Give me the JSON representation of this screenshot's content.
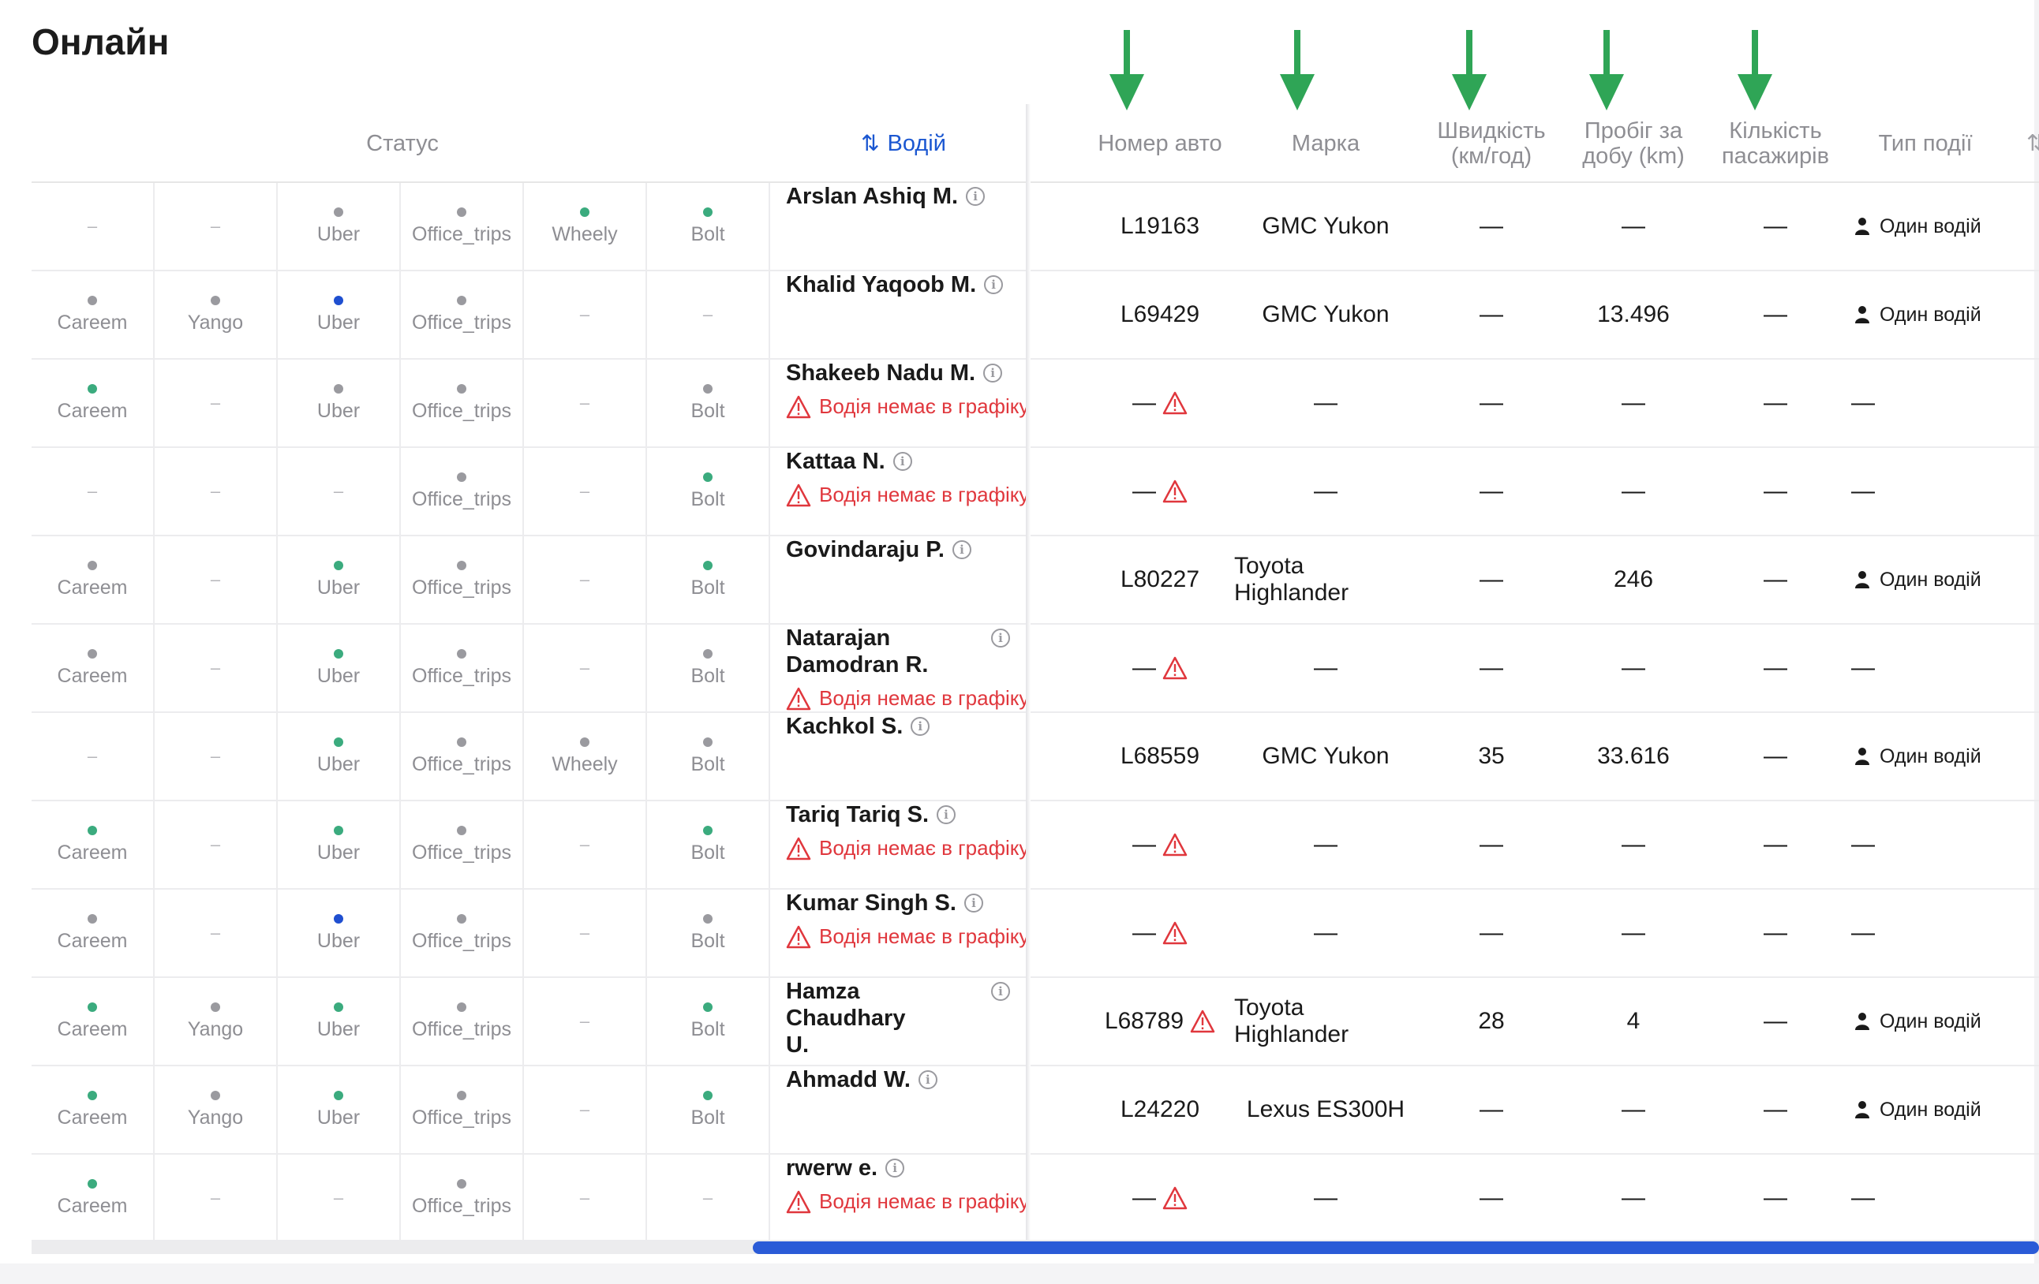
{
  "page": {
    "title": "Онлайн"
  },
  "header": {
    "status": "Статус",
    "driver": "Водій",
    "sort_icon": "⇅",
    "plate": "Номер авто",
    "brand": "Марка",
    "speed_1": "Швидкість",
    "speed_2": "(км/год)",
    "mileage_1": "Пробіг за",
    "mileage_2": "добу (km)",
    "passengers_1": "Кількість",
    "passengers_2": "пасажирів",
    "event": "Тип події",
    "cutoff": "⇅"
  },
  "colors": {
    "green": "#3bab7e",
    "gray": "#9a9a9f",
    "blue": "#1f4fd0",
    "warn": "#e0373d",
    "arrow": "#2fa556",
    "scroll": "#2a5bd7"
  },
  "rows": [
    {
      "services": [
        {
          "label": null
        },
        {
          "label": null
        },
        {
          "label": "Uber",
          "dot": "gray"
        },
        {
          "label": "Office_trips",
          "dot": "gray"
        },
        {
          "label": "Wheely",
          "dot": "green"
        },
        {
          "label": "Bolt",
          "dot": "green"
        }
      ],
      "driver": "Arslan Ashiq M.",
      "warning": null,
      "plate": "L19163",
      "plate_warn": false,
      "brand": "GMC Yukon",
      "speed": "—",
      "mileage": "—",
      "passengers": "—",
      "event": "Один водій"
    },
    {
      "services": [
        {
          "label": "Careem",
          "dot": "gray"
        },
        {
          "label": "Yango",
          "dot": "gray"
        },
        {
          "label": "Uber",
          "dot": "blue"
        },
        {
          "label": "Office_trips",
          "dot": "gray"
        },
        {
          "label": null
        },
        {
          "label": null
        }
      ],
      "driver": "Khalid Yaqoob M.",
      "warning": null,
      "plate": "L69429",
      "plate_warn": false,
      "brand": "GMC Yukon",
      "speed": "—",
      "mileage": "13.496",
      "passengers": "—",
      "event": "Один водій"
    },
    {
      "services": [
        {
          "label": "Careem",
          "dot": "green"
        },
        {
          "label": null
        },
        {
          "label": "Uber",
          "dot": "gray"
        },
        {
          "label": "Office_trips",
          "dot": "gray"
        },
        {
          "label": null
        },
        {
          "label": "Bolt",
          "dot": "gray"
        }
      ],
      "driver": "Shakeeb Nadu M.",
      "warning": "Водія немає в графіку",
      "plate": "—",
      "plate_warn": true,
      "brand": "—",
      "speed": "—",
      "mileage": "—",
      "passengers": "—",
      "event": "—"
    },
    {
      "services": [
        {
          "label": null
        },
        {
          "label": null
        },
        {
          "label": null
        },
        {
          "label": "Office_trips",
          "dot": "gray"
        },
        {
          "label": null
        },
        {
          "label": "Bolt",
          "dot": "green"
        }
      ],
      "driver": "Kattaa N.",
      "warning": "Водія немає в графіку",
      "plate": "—",
      "plate_warn": true,
      "brand": "—",
      "speed": "—",
      "mileage": "—",
      "passengers": "—",
      "event": "—"
    },
    {
      "services": [
        {
          "label": "Careem",
          "dot": "gray"
        },
        {
          "label": null
        },
        {
          "label": "Uber",
          "dot": "green"
        },
        {
          "label": "Office_trips",
          "dot": "gray"
        },
        {
          "label": null
        },
        {
          "label": "Bolt",
          "dot": "green"
        }
      ],
      "driver": "Govindaraju P.",
      "warning": null,
      "plate": "L80227",
      "plate_warn": false,
      "brand_1": "Toyota",
      "brand_2": "Highlander",
      "speed": "—",
      "mileage": "246",
      "passengers": "—",
      "event": "Один водій"
    },
    {
      "services": [
        {
          "label": "Careem",
          "dot": "gray"
        },
        {
          "label": null
        },
        {
          "label": "Uber",
          "dot": "green"
        },
        {
          "label": "Office_trips",
          "dot": "gray"
        },
        {
          "label": null
        },
        {
          "label": "Bolt",
          "dot": "gray"
        }
      ],
      "driver_1": "Natarajan",
      "driver_2": "Damodran R.",
      "warning": "Водія немає в графіку",
      "plate": "—",
      "plate_warn": true,
      "brand": "—",
      "speed": "—",
      "mileage": "—",
      "passengers": "—",
      "event": "—"
    },
    {
      "services": [
        {
          "label": null
        },
        {
          "label": null
        },
        {
          "label": "Uber",
          "dot": "green"
        },
        {
          "label": "Office_trips",
          "dot": "gray"
        },
        {
          "label": "Wheely",
          "dot": "gray"
        },
        {
          "label": "Bolt",
          "dot": "gray"
        }
      ],
      "driver": "Kachkol S.",
      "warning": null,
      "plate": "L68559",
      "plate_warn": false,
      "brand": "GMC Yukon",
      "speed": "35",
      "mileage": "33.616",
      "passengers": "—",
      "event": "Один водій"
    },
    {
      "services": [
        {
          "label": "Careem",
          "dot": "green"
        },
        {
          "label": null
        },
        {
          "label": "Uber",
          "dot": "green"
        },
        {
          "label": "Office_trips",
          "dot": "gray"
        },
        {
          "label": null
        },
        {
          "label": "Bolt",
          "dot": "green"
        }
      ],
      "driver": "Tariq Tariq S.",
      "warning": "Водія немає в графіку",
      "plate": "—",
      "plate_warn": true,
      "brand": "—",
      "speed": "—",
      "mileage": "—",
      "passengers": "—",
      "event": "—"
    },
    {
      "services": [
        {
          "label": "Careem",
          "dot": "gray"
        },
        {
          "label": null
        },
        {
          "label": "Uber",
          "dot": "blue"
        },
        {
          "label": "Office_trips",
          "dot": "gray"
        },
        {
          "label": null
        },
        {
          "label": "Bolt",
          "dot": "gray"
        }
      ],
      "driver": "Kumar Singh S.",
      "warning": "Водія немає в графіку",
      "plate": "—",
      "plate_warn": true,
      "brand": "—",
      "speed": "—",
      "mileage": "—",
      "passengers": "—",
      "event": "—"
    },
    {
      "services": [
        {
          "label": "Careem",
          "dot": "green"
        },
        {
          "label": "Yango",
          "dot": "gray"
        },
        {
          "label": "Uber",
          "dot": "green"
        },
        {
          "label": "Office_trips",
          "dot": "gray"
        },
        {
          "label": null
        },
        {
          "label": "Bolt",
          "dot": "green"
        }
      ],
      "driver_1": "Hamza Chaudhary",
      "driver_2": "U.",
      "warning": null,
      "plate": "L68789",
      "plate_warn": true,
      "brand_1": "Toyota",
      "brand_2": "Highlander",
      "speed": "28",
      "mileage": "4",
      "passengers": "—",
      "event": "Один водій"
    },
    {
      "services": [
        {
          "label": "Careem",
          "dot": "green"
        },
        {
          "label": "Yango",
          "dot": "gray"
        },
        {
          "label": "Uber",
          "dot": "green"
        },
        {
          "label": "Office_trips",
          "dot": "gray"
        },
        {
          "label": null
        },
        {
          "label": "Bolt",
          "dot": "green"
        }
      ],
      "driver": "Ahmadd W.",
      "warning": null,
      "plate": "L24220",
      "plate_warn": false,
      "brand": "Lexus ES300H",
      "speed": "—",
      "mileage": "—",
      "passengers": "—",
      "event": "Один водій"
    },
    {
      "services": [
        {
          "label": "Careem",
          "dot": "green"
        },
        {
          "label": null
        },
        {
          "label": null
        },
        {
          "label": "Office_trips",
          "dot": "gray"
        },
        {
          "label": null
        },
        {
          "label": null
        }
      ],
      "driver": "rwerw e.",
      "warning": "Водія немає в графіку",
      "plate": "—",
      "plate_warn": true,
      "brand": "—",
      "speed": "—",
      "mileage": "—",
      "passengers": "—",
      "event": "—"
    }
  ]
}
